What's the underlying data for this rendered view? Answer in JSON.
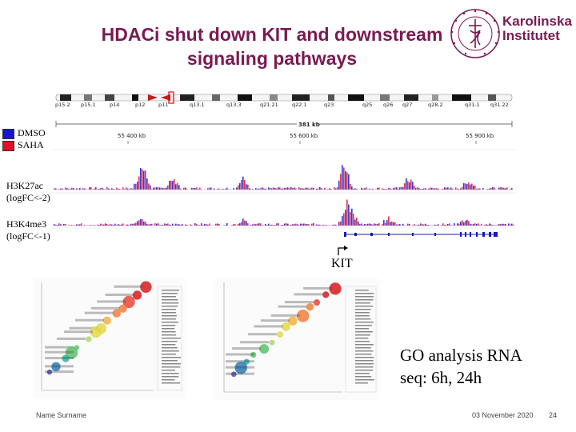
{
  "slide": {
    "title_line1": "HDACi shut down KIT and downstream",
    "title_line2": "signaling pathways",
    "page_number": "24",
    "footer_left": "Name Surname",
    "footer_date": "03 November 2020"
  },
  "logo": {
    "line1": "Karolinska",
    "line2": "Institutet",
    "seal_text": "KAROLINSKA INSTITUTET ANNO 1810",
    "color": "#7a1a52"
  },
  "legend": {
    "items": [
      {
        "label": "DMSO",
        "color": "#1414d2"
      },
      {
        "label": "SAHA",
        "color": "#e0102a"
      }
    ]
  },
  "tracks": {
    "h3k27ac_line1": "H3K27ac",
    "h3k27ac_line2": "(logFC<-2)",
    "h3k4me3_line1": "H3K4me3",
    "h3k4me3_line2": "(logFC<-1)"
  },
  "genome_browser": {
    "bands": [
      "p15.2",
      "p15.1",
      "p14",
      "p12",
      "p11",
      "q13.1",
      "q13.3",
      "q21.21",
      "q22.1",
      "q23",
      "q25",
      "q26",
      "q27",
      "q28.2",
      "q31.1",
      "q31.22"
    ],
    "span_label": "381 kb",
    "coord_labels": [
      "55 400 kb",
      "55 600 kb",
      "55 900 kb"
    ],
    "gene_label": "KIT"
  },
  "go_analysis": {
    "caption_line1": "GO analysis RNA",
    "caption_line2": "seq: 6h, 24h"
  }
}
